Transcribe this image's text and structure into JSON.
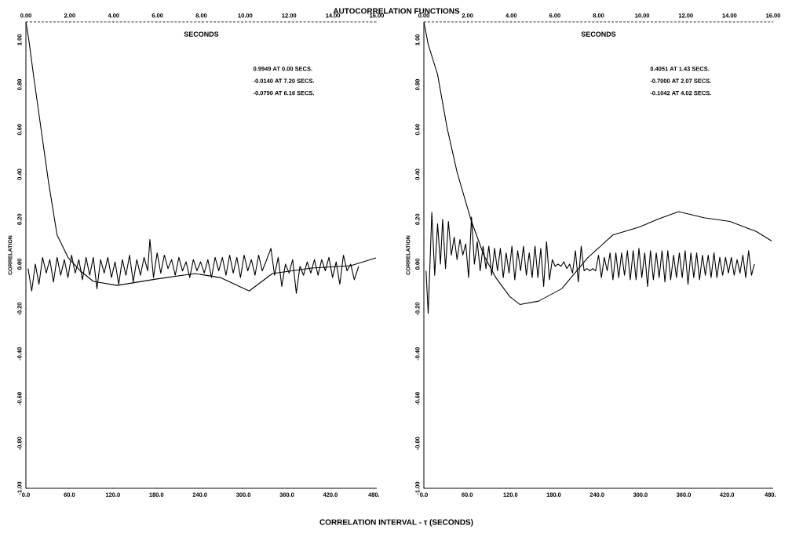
{
  "chart_data": [
    {
      "type": "line",
      "title": "AUTOCORRELATION FUNCTIONS",
      "xlabel": "CORRELATION INTERVAL - τ (SECONDS)",
      "ylabel": "CORRELATION",
      "x2label": "SECONDS",
      "marker": "none",
      "line_style": "solid",
      "xlim": [
        0,
        484
      ],
      "xticks": [
        {
          "value": 0,
          "label": "0.0"
        },
        {
          "value": 60,
          "label": "60.0"
        },
        {
          "value": 120,
          "label": "120.0"
        },
        {
          "value": 180,
          "label": "180.0"
        },
        {
          "value": 240,
          "label": "240.0"
        },
        {
          "value": 300,
          "label": "300.0"
        },
        {
          "value": 360,
          "label": "360.0"
        },
        {
          "value": 420,
          "label": "420.0"
        },
        {
          "value": 480,
          "label": "480."
        }
      ],
      "x2lim": [
        0,
        16
      ],
      "x2ticks": [
        {
          "value": 0,
          "label": "0.00"
        },
        {
          "value": 2,
          "label": "2.00"
        },
        {
          "value": 4,
          "label": "4.00"
        },
        {
          "value": 6,
          "label": "6.00"
        },
        {
          "value": 8,
          "label": "8.00"
        },
        {
          "value": 10,
          "label": "10.00"
        },
        {
          "value": 12,
          "label": "12.00"
        },
        {
          "value": 14,
          "label": "14.00"
        },
        {
          "value": 16,
          "label": "16.00"
        }
      ],
      "ylim": [
        -1,
        1.08
      ],
      "yticks": [
        {
          "value": -1,
          "label": "-1.00"
        },
        {
          "value": -0.8,
          "label": "-0.80"
        },
        {
          "value": -0.6,
          "label": "-0.60"
        },
        {
          "value": -0.4,
          "label": "-0.40"
        },
        {
          "value": -0.2,
          "label": "-0.20"
        },
        {
          "value": 0,
          "label": "0.00"
        },
        {
          "value": 0.2,
          "label": "0.20"
        },
        {
          "value": 0.4,
          "label": "0.40"
        },
        {
          "value": 0.6,
          "label": "0.60"
        },
        {
          "value": 0.8,
          "label": "0.80"
        },
        {
          "value": 1,
          "label": "1.00"
        }
      ],
      "annotations": [
        "0.9949 AT 0.00 SECS.",
        "-0.0140 AT 7.20 SECS.",
        "-0.0790 AT 6.16 SECS."
      ],
      "series": [
        {
          "color": "#000000",
          "x": [
            0,
            4,
            11,
            21,
            31,
            43,
            58,
            75,
            93,
            126,
            179,
            233,
            268,
            308,
            340,
            394,
            448,
            483
          ],
          "values": [
            1.08,
            1.0,
            0.83,
            0.6,
            0.37,
            0.13,
            0.03,
            -0.03,
            -0.077,
            -0.095,
            -0.067,
            -0.042,
            -0.06,
            -0.12,
            -0.042,
            -0.018,
            -0.007,
            0.028
          ]
        },
        {
          "color": "#000000",
          "x": [
            3,
            8,
            13,
            18,
            23,
            28,
            33,
            38,
            43,
            48,
            53,
            58,
            63,
            68,
            73,
            78,
            83,
            88,
            93,
            98,
            103,
            108,
            113,
            118,
            123,
            128,
            133,
            138,
            143,
            148,
            153,
            158,
            163,
            168,
            171,
            176,
            181,
            186,
            191,
            196,
            201,
            206,
            211,
            216,
            221,
            226,
            231,
            236,
            241,
            246,
            251,
            256,
            261,
            266,
            271,
            276,
            281,
            286,
            291,
            296,
            301,
            306,
            311,
            316,
            321,
            326,
            331,
            338,
            343,
            348,
            353,
            358,
            363,
            368,
            373,
            378,
            383,
            388,
            393,
            398,
            403,
            408,
            413,
            418,
            423,
            428,
            433,
            438,
            443,
            448,
            453,
            459
          ],
          "values": [
            -0.02,
            -0.12,
            0.0,
            -0.09,
            0.03,
            -0.04,
            0.02,
            -0.08,
            0.03,
            -0.05,
            0.02,
            -0.06,
            0.04,
            -0.04,
            0.02,
            -0.07,
            0.03,
            -0.05,
            0.03,
            -0.11,
            0.02,
            -0.04,
            0.03,
            -0.06,
            0.01,
            -0.09,
            0.02,
            -0.05,
            0.04,
            -0.08,
            0.02,
            -0.05,
            0.03,
            -0.03,
            0.11,
            -0.06,
            0.05,
            -0.04,
            0.04,
            -0.02,
            0.02,
            -0.05,
            0.03,
            -0.03,
            0.01,
            -0.06,
            0.02,
            -0.03,
            0.01,
            -0.04,
            0.02,
            -0.06,
            0.03,
            -0.03,
            0.03,
            -0.05,
            0.04,
            -0.04,
            0.03,
            -0.06,
            0.04,
            -0.03,
            0.02,
            -0.05,
            0.04,
            -0.03,
            0.01,
            0.07,
            -0.05,
            0.03,
            -0.1,
            0.0,
            -0.04,
            0.02,
            -0.13,
            -0.01,
            -0.05,
            0.01,
            -0.04,
            0.02,
            -0.05,
            0.02,
            -0.03,
            0.03,
            -0.06,
            0.01,
            -0.09,
            0.04,
            -0.03,
            0.0,
            -0.07,
            -0.01
          ]
        }
      ]
    },
    {
      "type": "line",
      "ylabel": "CORRELATION",
      "x2label": "SECONDS",
      "marker": "none",
      "line_style": "solid",
      "xlim": [
        0,
        484
      ],
      "xticks": [
        {
          "value": 0,
          "label": "0.0"
        },
        {
          "value": 60,
          "label": "60.0"
        },
        {
          "value": 120,
          "label": "120.0"
        },
        {
          "value": 180,
          "label": "180.0"
        },
        {
          "value": 240,
          "label": "240.0"
        },
        {
          "value": 300,
          "label": "300.0"
        },
        {
          "value": 360,
          "label": "360.0"
        },
        {
          "value": 420,
          "label": "420.0"
        },
        {
          "value": 480,
          "label": "480."
        }
      ],
      "x2lim": [
        0,
        16
      ],
      "x2ticks": [
        {
          "value": 0,
          "label": "0.00"
        },
        {
          "value": 2,
          "label": "2.00"
        },
        {
          "value": 4,
          "label": "4.00"
        },
        {
          "value": 6,
          "label": "6.00"
        },
        {
          "value": 8,
          "label": "8.00"
        },
        {
          "value": 10,
          "label": "10.00"
        },
        {
          "value": 12,
          "label": "12.00"
        },
        {
          "value": 14,
          "label": "14.00"
        },
        {
          "value": 16,
          "label": "16.00"
        }
      ],
      "ylim": [
        -1,
        1.08
      ],
      "yticks": [
        {
          "value": -1,
          "label": "-1.00"
        },
        {
          "value": -0.8,
          "label": "-0.80"
        },
        {
          "value": -0.6,
          "label": "-0.60"
        },
        {
          "value": -0.4,
          "label": "-0.40"
        },
        {
          "value": -0.2,
          "label": "-0.20"
        },
        {
          "value": 0,
          "label": "0.00"
        },
        {
          "value": 0.2,
          "label": "0.20"
        },
        {
          "value": 0.4,
          "label": "0.40"
        },
        {
          "value": 0.6,
          "label": "0.60"
        },
        {
          "value": 0.8,
          "label": "0.80"
        },
        {
          "value": 1,
          "label": "1.00"
        }
      ],
      "annotations": [
        "0.4051 AT 1.43 SECS.",
        "-0.7000 AT 2.07 SECS.",
        "-0.1042 AT 4.02 SECS."
      ],
      "series": [
        {
          "color": "#000000",
          "x": [
            0,
            6,
            19,
            32,
            46,
            65,
            83,
            100,
            119,
            133,
            159,
            191,
            227,
            262,
            299,
            324,
            353,
            388,
            424,
            461,
            482
          ],
          "values": [
            1.08,
            0.98,
            0.845,
            0.61,
            0.41,
            0.2,
            0.04,
            -0.062,
            -0.145,
            -0.18,
            -0.165,
            -0.11,
            0.028,
            0.13,
            0.166,
            0.2,
            0.234,
            0.207,
            0.19,
            0.145,
            0.103
          ]
        },
        {
          "color": "#000000",
          "x": [
            3,
            6,
            11,
            15,
            19,
            23,
            26,
            30,
            34,
            38,
            42,
            46,
            50,
            54,
            58,
            62,
            66,
            70,
            74,
            78,
            82,
            86,
            90,
            94,
            98,
            102,
            106,
            110,
            114,
            118,
            122,
            126,
            130,
            134,
            138,
            142,
            146,
            150,
            154,
            158,
            162,
            166,
            170,
            174,
            178,
            182,
            186,
            190,
            194,
            198,
            202,
            206,
            210,
            214,
            218,
            222,
            226,
            230,
            234,
            238,
            242,
            246,
            250,
            254,
            258,
            262,
            266,
            270,
            274,
            278,
            282,
            286,
            290,
            294,
            298,
            302,
            306,
            310,
            314,
            318,
            322,
            326,
            330,
            334,
            338,
            342,
            346,
            350,
            354,
            358,
            362,
            366,
            370,
            374,
            378,
            382,
            386,
            390,
            394,
            398,
            402,
            406,
            410,
            414,
            418,
            422,
            426,
            430,
            434,
            438,
            442,
            446,
            450,
            454,
            458
          ],
          "values": [
            -0.03,
            -0.22,
            0.23,
            -0.05,
            0.18,
            0.0,
            0.2,
            -0.02,
            0.19,
            0.04,
            0.12,
            0.02,
            0.11,
            0.04,
            0.09,
            -0.06,
            0.21,
            0.0,
            0.1,
            -0.03,
            0.08,
            -0.02,
            0.08,
            -0.05,
            0.07,
            -0.03,
            0.07,
            -0.06,
            0.05,
            -0.04,
            0.08,
            -0.07,
            0.06,
            -0.03,
            0.08,
            -0.05,
            0.05,
            -0.06,
            0.08,
            -0.06,
            0.07,
            -0.1,
            0.1,
            -0.07,
            0.02,
            -0.01,
            0.0,
            -0.01,
            0.01,
            -0.02,
            0.0,
            -0.04,
            0.06,
            -0.08,
            0.08,
            -0.03,
            -0.02,
            -0.03,
            -0.02,
            -0.03,
            0.04,
            -0.06,
            0.03,
            -0.03,
            0.05,
            -0.07,
            0.05,
            -0.06,
            0.05,
            -0.05,
            0.06,
            -0.07,
            0.06,
            -0.07,
            0.07,
            -0.06,
            0.05,
            -0.1,
            0.06,
            -0.07,
            0.05,
            -0.06,
            0.06,
            -0.08,
            0.06,
            -0.07,
            0.04,
            -0.06,
            0.05,
            -0.06,
            0.06,
            -0.09,
            0.05,
            -0.06,
            0.05,
            -0.07,
            0.04,
            -0.05,
            0.04,
            -0.06,
            0.05,
            -0.06,
            0.03,
            -0.05,
            0.03,
            -0.04,
            0.03,
            -0.05,
            0.02,
            -0.04,
            0.04,
            -0.06,
            0.06,
            -0.05,
            0.0
          ]
        }
      ]
    }
  ]
}
